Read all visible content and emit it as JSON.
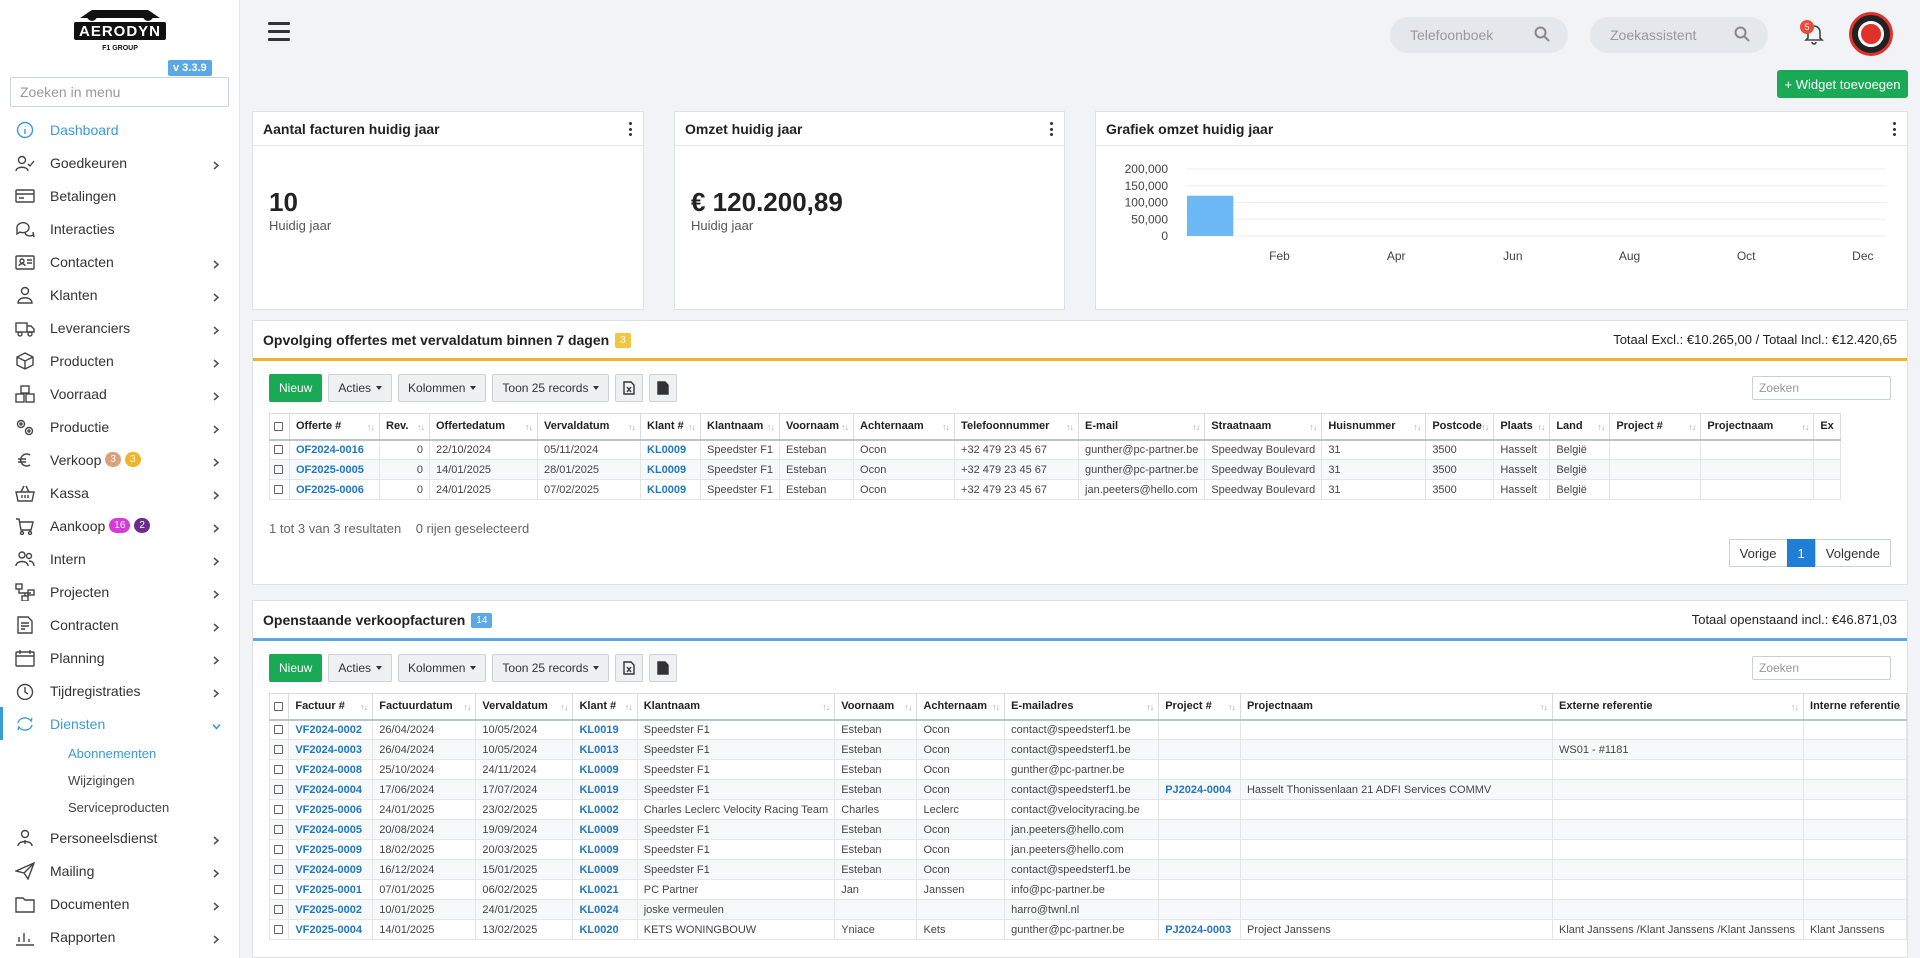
{
  "brand": {
    "logo_text": "AERODYN",
    "logo_sub": "F1 GROUP",
    "version": "v 3.3.9"
  },
  "menu_search_placeholder": "Zoeken in menu",
  "nav": [
    {
      "label": "Dashboard",
      "icon": "info-icon",
      "chev": false
    },
    {
      "label": "Goedkeuren",
      "icon": "user-check-icon",
      "chev": true
    },
    {
      "label": "Betalingen",
      "icon": "card-icon",
      "chev": false
    },
    {
      "label": "Interacties",
      "icon": "chat-icon",
      "chev": false
    },
    {
      "label": "Contacten",
      "icon": "contact-card-icon",
      "chev": true
    },
    {
      "label": "Klanten",
      "icon": "person-icon",
      "chev": true
    },
    {
      "label": "Leveranciers",
      "icon": "truck-icon",
      "chev": true
    },
    {
      "label": "Producten",
      "icon": "box-icon",
      "chev": true
    },
    {
      "label": "Voorraad",
      "icon": "boxes-icon",
      "chev": true
    },
    {
      "label": "Productie",
      "icon": "gears-icon",
      "chev": true
    },
    {
      "label": "Verkoop",
      "icon": "euro-icon",
      "chev": true,
      "badges": [
        {
          "text": "3",
          "color": "#d9a07a"
        },
        {
          "text": "3",
          "color": "#f0b429"
        }
      ]
    },
    {
      "label": "Kassa",
      "icon": "basket-icon",
      "chev": true
    },
    {
      "label": "Aankoop",
      "icon": "cart-icon",
      "chev": true,
      "badges": [
        {
          "text": "16",
          "color": "#d63ad8"
        },
        {
          "text": "2",
          "color": "#6c2c8c"
        }
      ]
    },
    {
      "label": "Intern",
      "icon": "people-icon",
      "chev": true
    },
    {
      "label": "Projecten",
      "icon": "project-icon",
      "chev": true
    },
    {
      "label": "Contracten",
      "icon": "contract-icon",
      "chev": true
    },
    {
      "label": "Planning",
      "icon": "calendar-icon",
      "chev": true
    },
    {
      "label": "Tijdregistraties",
      "icon": "timer-icon",
      "chev": true
    },
    {
      "label": "Diensten",
      "icon": "refresh-icon",
      "chev": true,
      "open": true
    }
  ],
  "subnav": [
    "Abonnementen",
    "Wijzigingen",
    "Serviceproducten"
  ],
  "nav_after": [
    {
      "label": "Personeelsdienst",
      "icon": "staff-icon",
      "chev": true
    },
    {
      "label": "Mailing",
      "icon": "send-icon",
      "chev": true
    },
    {
      "label": "Documenten",
      "icon": "folder-icon",
      "chev": true
    },
    {
      "label": "Rapporten",
      "icon": "chart-icon",
      "chev": true
    }
  ],
  "top": {
    "phonebook_placeholder": "Telefoonboek",
    "assistant_placeholder": "Zoekassistent",
    "notif_count": "5",
    "add_widget": "+ Widget toevoegen"
  },
  "widgets": {
    "invoices": {
      "title": "Aantal facturen huidig jaar",
      "value": "10",
      "sub": "Huidig jaar"
    },
    "revenue": {
      "title": "Omzet huidig jaar",
      "value": "€ 120.200,89",
      "sub": "Huidig jaar"
    },
    "chart_title": "Grafiek omzet huidig jaar"
  },
  "chart_data": {
    "type": "bar",
    "title": "Grafiek omzet huidig jaar",
    "categories": [
      "Jan",
      "Feb",
      "Mar",
      "Apr",
      "May",
      "Jun",
      "Jul",
      "Aug",
      "Sep",
      "Oct",
      "Nov",
      "Dec"
    ],
    "x_tick_labels": [
      "Feb",
      "Apr",
      "Jun",
      "Aug",
      "Oct",
      "Dec"
    ],
    "values": [
      120200.89,
      0,
      0,
      0,
      0,
      0,
      0,
      0,
      0,
      0,
      0,
      0
    ],
    "y_ticks": [
      "0",
      "50,000",
      "100,000",
      "150,000",
      "200,000"
    ],
    "ylim": [
      0,
      200000
    ],
    "color": "#6bb8f5",
    "grid": true
  },
  "offers": {
    "title": "Opvolging offertes met vervaldatum binnen 7 dagen",
    "count": "3",
    "total": "Totaal Excl.: €10.265,00 / Totaal Incl.: €12.420,65",
    "toolbar": {
      "new": "Nieuw",
      "actions": "Acties",
      "columns": "Kolommen",
      "show": "Toon 25 records"
    },
    "search_placeholder": "Zoeken",
    "columns": [
      "Offerte #",
      "Rev.",
      "Offertedatum",
      "Vervaldatum",
      "Klant #",
      "Klantnaam",
      "Voornaam",
      "Achternaam",
      "Telefoonnummer",
      "E-mail",
      "Straatnaam",
      "Huisnummer",
      "Postcode",
      "Plaats",
      "Land",
      "Project #",
      "Projectnaam",
      "Ex"
    ],
    "rows": [
      [
        "OF2024-0016",
        "0",
        "22/10/2024",
        "05/11/2024",
        "KL0009",
        "Speedster F1",
        "Esteban",
        "Ocon",
        "+32 479 23 45 67",
        "gunther@pc-partner.be",
        "Speedway Boulevard",
        "31",
        "3500",
        "Hasselt",
        "België",
        "",
        "",
        ""
      ],
      [
        "OF2025-0005",
        "0",
        "14/01/2025",
        "28/01/2025",
        "KL0009",
        "Speedster F1",
        "Esteban",
        "Ocon",
        "+32 479 23 45 67",
        "gunther@pc-partner.be",
        "Speedway Boulevard",
        "31",
        "3500",
        "Hasselt",
        "België",
        "",
        "",
        ""
      ],
      [
        "OF2025-0006",
        "0",
        "24/01/2025",
        "07/02/2025",
        "KL0009",
        "Speedster F1",
        "Esteban",
        "Ocon",
        "+32 479 23 45 67",
        "jan.peeters@hello.com",
        "Speedway Boulevard",
        "31",
        "3500",
        "Hasselt",
        "België",
        "",
        "",
        ""
      ]
    ],
    "info": "1 tot 3 van 3 resultaten",
    "selected": "0 rijen geselecteerd",
    "pager": {
      "prev": "Vorige",
      "page": "1",
      "next": "Volgende"
    }
  },
  "invoices": {
    "title": "Openstaande verkoopfacturen",
    "count": "14",
    "total": "Totaal openstaand incl.: €46.871,03",
    "toolbar": {
      "new": "Nieuw",
      "actions": "Acties",
      "columns": "Kolommen",
      "show": "Toon 25 records"
    },
    "search_placeholder": "Zoeken",
    "columns": [
      "Factuur #",
      "Factuurdatum",
      "Vervaldatum",
      "Klant #",
      "Klantnaam",
      "Voornaam",
      "Achternaam",
      "E-mailadres",
      "Project #",
      "Projectnaam",
      "Externe referentie",
      "Interne referentie"
    ],
    "rows": [
      [
        "VF2024-0002",
        "26/04/2024",
        "10/05/2024",
        "KL0019",
        "Speedster F1",
        "Esteban",
        "Ocon",
        "contact@speedsterf1.be",
        "",
        "",
        "",
        ""
      ],
      [
        "VF2024-0003",
        "26/04/2024",
        "10/05/2024",
        "KL0013",
        "Speedster F1",
        "Esteban",
        "Ocon",
        "contact@speedsterf1.be",
        "",
        "",
        "WS01 - #1181",
        ""
      ],
      [
        "VF2024-0008",
        "25/10/2024",
        "24/11/2024",
        "KL0009",
        "Speedster F1",
        "Esteban",
        "Ocon",
        "gunther@pc-partner.be",
        "",
        "",
        "",
        ""
      ],
      [
        "VF2024-0004",
        "17/06/2024",
        "17/07/2024",
        "KL0019",
        "Speedster F1",
        "Esteban",
        "Ocon",
        "contact@speedsterf1.be",
        "PJ2024-0004",
        "Hasselt Thonissenlaan 21 ADFI Services COMMV",
        "",
        ""
      ],
      [
        "VF2025-0006",
        "24/01/2025",
        "23/02/2025",
        "KL0002",
        "Charles Leclerc Velocity Racing Team",
        "Charles",
        "Leclerc",
        "contact@velocityracing.be",
        "",
        "",
        "",
        ""
      ],
      [
        "VF2024-0005",
        "20/08/2024",
        "19/09/2024",
        "KL0009",
        "Speedster F1",
        "Esteban",
        "Ocon",
        "jan.peeters@hello.com",
        "",
        "",
        "",
        ""
      ],
      [
        "VF2025-0009",
        "18/02/2025",
        "20/03/2025",
        "KL0009",
        "Speedster F1",
        "Esteban",
        "Ocon",
        "jan.peeters@hello.com",
        "",
        "",
        "",
        ""
      ],
      [
        "VF2024-0009",
        "16/12/2024",
        "15/01/2025",
        "KL0009",
        "Speedster F1",
        "Esteban",
        "Ocon",
        "contact@speedsterf1.be",
        "",
        "",
        "",
        ""
      ],
      [
        "VF2025-0001",
        "07/01/2025",
        "06/02/2025",
        "KL0021",
        "PC Partner",
        "Jan",
        "Janssen",
        "info@pc-partner.be",
        "",
        "",
        "",
        ""
      ],
      [
        "VF2025-0002",
        "10/01/2025",
        "24/01/2025",
        "KL0024",
        "joske vermeulen",
        "",
        "",
        "harro@twnl.nl",
        "",
        "",
        "",
        ""
      ],
      [
        "VF2025-0004",
        "14/01/2025",
        "13/02/2025",
        "KL0020",
        "KETS WONINGBOUW",
        "Yniace",
        "Kets",
        "gunther@pc-partner.be",
        "PJ2024-0003",
        "Project Janssens",
        "Klant Janssens /Klant Janssens /Klant Janssens",
        "Klant Janssens"
      ]
    ]
  }
}
